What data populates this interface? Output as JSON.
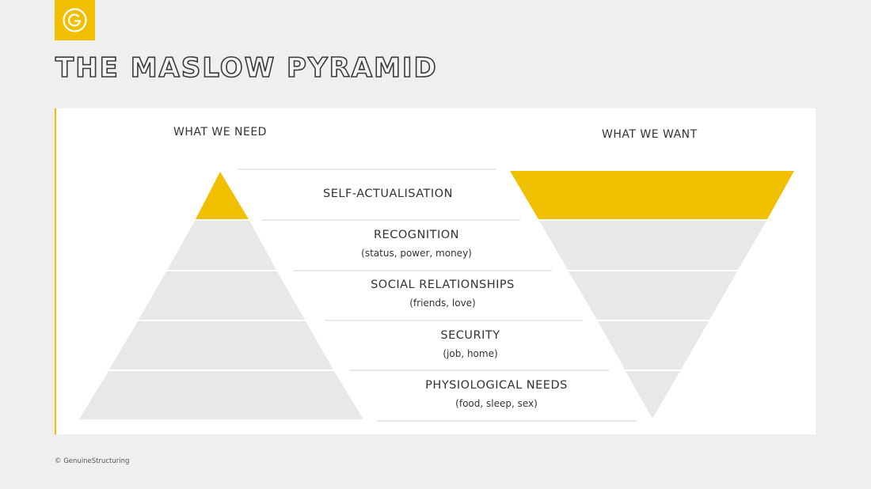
{
  "title": "THE MASLOW PYRAMID",
  "headers": {
    "need": "WHAT WE NEED",
    "want": "WHAT WE WANT"
  },
  "levels": [
    {
      "title": "SELF-ACTUALISATION",
      "subtitle": ""
    },
    {
      "title": "RECOGNITION",
      "subtitle": "(status, power, money)"
    },
    {
      "title": "SOCIAL RELATIONSHIPS",
      "subtitle": "(friends, love)"
    },
    {
      "title": "SECURITY",
      "subtitle": "(job, home)"
    },
    {
      "title": "PHYSIOLOGICAL NEEDS",
      "subtitle": "(food, sleep, sex)"
    }
  ],
  "highlighted_level": "SELF-ACTUALISATION",
  "copyright": "© GenuineStructuring",
  "colors": {
    "accent": "#f0c000",
    "band": "#e8e8e8",
    "background": "#efefef",
    "panel": "#ffffff",
    "text": "#333333"
  },
  "icons": {
    "logo": "brand-logo-icon"
  }
}
